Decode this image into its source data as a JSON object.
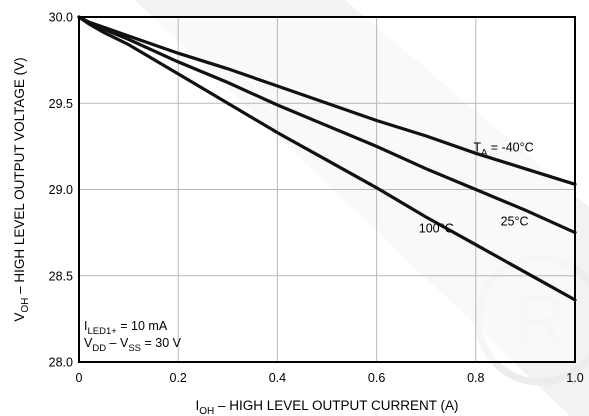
{
  "chart_data": {
    "type": "line",
    "xlabel": {
      "main": "I",
      "sub": "OH",
      "rest": " – HIGH LEVEL OUTPUT CURRENT (A)"
    },
    "ylabel": {
      "main": "V",
      "sub": "OH",
      "rest": " – HIGH LEVEL OUTPUT VOLTAGE (V)"
    },
    "xlim": [
      0,
      1.0
    ],
    "ylim": [
      28.0,
      30.0
    ],
    "x_ticks": [
      {
        "value": 0,
        "label": "0"
      },
      {
        "value": 0.2,
        "label": "0.2"
      },
      {
        "value": 0.4,
        "label": "0.4"
      },
      {
        "value": 0.6,
        "label": "0.6"
      },
      {
        "value": 0.8,
        "label": "0.8"
      },
      {
        "value": 1.0,
        "label": "1.0"
      }
    ],
    "y_ticks": [
      {
        "value": 28.0,
        "label": "28.0"
      },
      {
        "value": 28.5,
        "label": "28.5"
      },
      {
        "value": 29.0,
        "label": "29.0"
      },
      {
        "value": 29.5,
        "label": "29.5"
      },
      {
        "value": 30.0,
        "label": "30.0"
      }
    ],
    "grid": true,
    "series": [
      {
        "x": [
          0,
          0.02,
          0.05,
          0.1,
          0.2,
          0.3,
          0.4,
          0.5,
          0.6,
          0.7,
          0.8,
          0.9,
          1.0
        ],
        "y": [
          30.0,
          29.97,
          29.94,
          29.89,
          29.79,
          29.7,
          29.6,
          29.5,
          29.4,
          29.31,
          29.21,
          29.12,
          29.03
        ]
      },
      {
        "x": [
          0,
          0.02,
          0.05,
          0.1,
          0.2,
          0.3,
          0.4,
          0.5,
          0.6,
          0.7,
          0.8,
          0.9,
          1.0
        ],
        "y": [
          30.0,
          29.97,
          29.93,
          29.87,
          29.74,
          29.62,
          29.49,
          29.37,
          29.25,
          29.12,
          29.0,
          28.88,
          28.75
        ]
      },
      {
        "x": [
          0,
          0.02,
          0.05,
          0.1,
          0.2,
          0.3,
          0.4,
          0.5,
          0.6,
          0.7,
          0.8,
          0.9,
          1.0
        ],
        "y": [
          30.0,
          29.96,
          29.91,
          29.84,
          29.67,
          29.5,
          29.33,
          29.17,
          29.01,
          28.84,
          28.68,
          28.52,
          28.36
        ]
      }
    ],
    "series_labels": [
      {
        "parts": [
          [
            "T",
            ""
          ],
          [
            "A",
            "sub"
          ],
          [
            " = -40°C",
            ""
          ]
        ],
        "x": 0.795,
        "y": 29.22
      },
      {
        "parts": [
          [
            "25°C",
            ""
          ]
        ],
        "x": 0.85,
        "y": 28.79
      },
      {
        "parts": [
          [
            "100°C",
            ""
          ]
        ],
        "x": 0.685,
        "y": 28.75
      }
    ],
    "annotations": [
      {
        "parts": [
          [
            "I",
            ""
          ],
          [
            "LED1+",
            "sub"
          ],
          [
            " = 10 mA",
            ""
          ]
        ]
      },
      {
        "parts": [
          [
            "V",
            ""
          ],
          [
            "DD",
            "sub"
          ],
          [
            " – V",
            ""
          ],
          [
            "SS",
            "sub"
          ],
          [
            " = 30 V",
            ""
          ]
        ]
      }
    ]
  }
}
